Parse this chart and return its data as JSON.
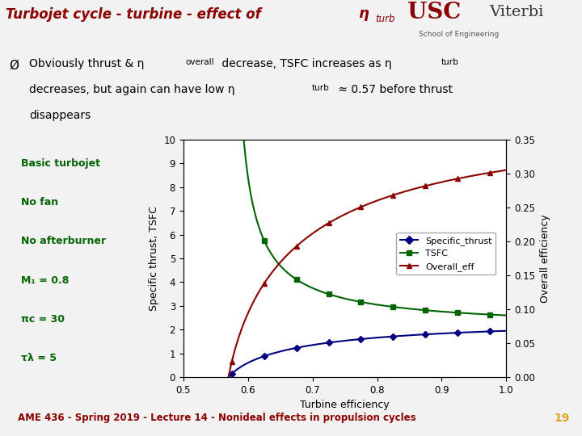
{
  "title_main": "Turbojet cycle - turbine - effect of ",
  "title_eta": "η",
  "title_sub": "turb",
  "slide_bg": "#f2f2f2",
  "plot_bg": "#ffffff",
  "xlabel": "Turbine efficiency",
  "ylabel_left": "Specific thrust, TSFC",
  "ylabel_right": "Overall efficiency",
  "xlim": [
    0.5,
    1.0
  ],
  "ylim_left": [
    0,
    10
  ],
  "ylim_right": [
    0.0,
    0.35
  ],
  "xticks": [
    0.5,
    0.6,
    0.7,
    0.8,
    0.9,
    1.0
  ],
  "yticks_left": [
    0,
    1,
    2,
    3,
    4,
    5,
    6,
    7,
    8,
    9,
    10
  ],
  "yticks_right": [
    0.0,
    0.05,
    0.1,
    0.15,
    0.2,
    0.25,
    0.3,
    0.35
  ],
  "footer_text": "AME 436 - Spring 2019 - Lecture 14 - Nonideal effects in propulsion cycles",
  "footer_number": "19",
  "legend_labels": [
    "Specific_thrust",
    "TSFC",
    "Overall_eff"
  ],
  "colors": {
    "title_bar": "#8B0000",
    "title_stripe1": "#8B0000",
    "title_stripe2": "#DAA520",
    "title_text": "#8B0000",
    "specific_thrust": "#000080",
    "tsfc": "#006400",
    "overall_eff": "#8B0000",
    "params_text": "#006400",
    "footer_text": "#8B0000",
    "footer_number": "#DAA520",
    "slide_bg": "#f2f2f2"
  },
  "usc_color": "#990000",
  "params": [
    "Basic turbojet",
    "No fan",
    "No afterburner",
    "M₁ = 0.8",
    "πc = 30",
    "τλ = 5"
  ]
}
